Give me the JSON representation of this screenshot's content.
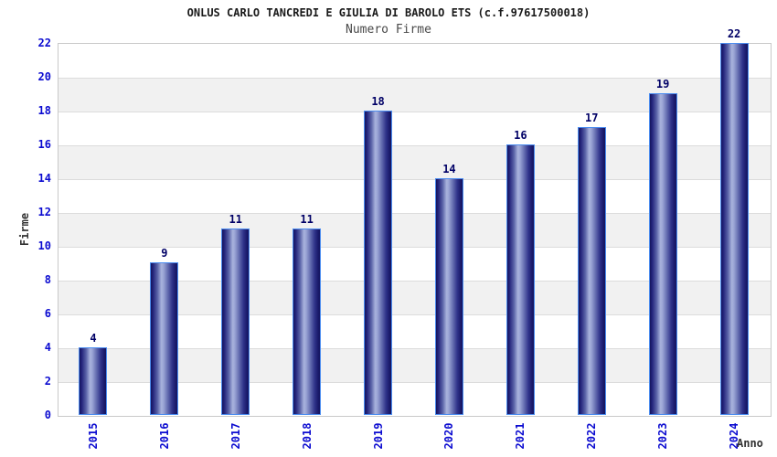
{
  "chart_data": {
    "type": "bar",
    "title": "ONLUS CARLO TANCREDI E GIULIA DI BAROLO ETS (c.f.97617500018)",
    "subtitle": "Numero Firme",
    "xlabel": "Anno",
    "ylabel": "Firme",
    "categories": [
      "2015",
      "2016",
      "2017",
      "2018",
      "2019",
      "2020",
      "2021",
      "2022",
      "2023",
      "2024"
    ],
    "values": [
      4,
      9,
      11,
      11,
      18,
      14,
      16,
      17,
      19,
      22
    ],
    "ylim": [
      0,
      22
    ],
    "ytick_step": 2,
    "yticks": [
      0,
      2,
      4,
      6,
      8,
      10,
      12,
      14,
      16,
      18,
      20,
      22
    ],
    "grid": "alternating-horizontal-bands",
    "legend": "none",
    "colors": {
      "tick_label": "#0b0bd0",
      "value_label": "#000066",
      "bar_dark": "#15155e",
      "bar_light": "#a9b3dd",
      "bar_border": "#4c8df0",
      "band_grey": "#f1f1f1",
      "gridline": "#dcdcdc",
      "plot_border": "#c9c9c9",
      "title_color": "#1a1a1a",
      "subtitle_color": "#4a4a4a",
      "axis_title_color": "#333333",
      "background": "#ffffff"
    }
  }
}
